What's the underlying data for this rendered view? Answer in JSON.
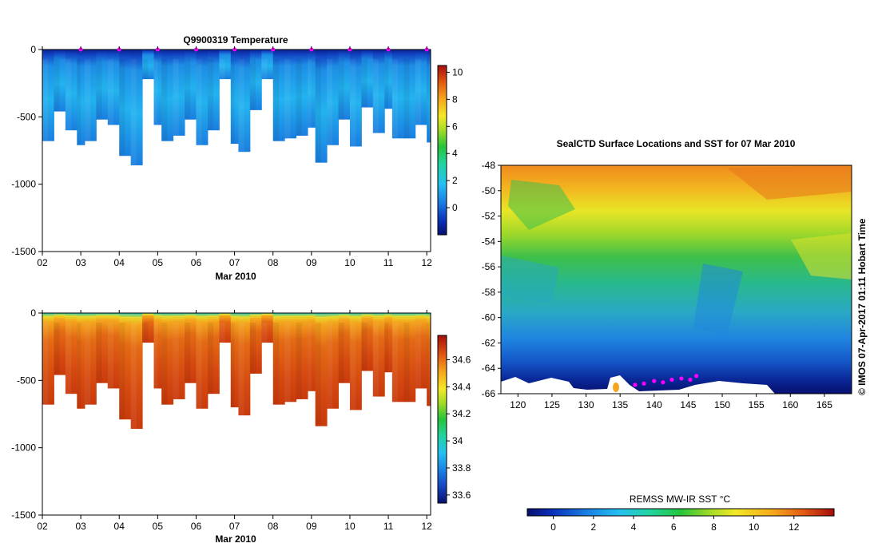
{
  "chart_data": [
    {
      "type": "heatmap",
      "title": "Q9900319  Temperature",
      "xlabel": "Mar 2010",
      "ylabel": "",
      "x_tick_labels": [
        "02",
        "03",
        "04",
        "05",
        "06",
        "07",
        "08",
        "09",
        "10",
        "11",
        "12"
      ],
      "x_range": [
        2,
        12.1
      ],
      "y_tick_labels": [
        "0",
        "-500",
        "-1000",
        "-1500"
      ],
      "y_range": [
        -1500,
        0
      ],
      "colorbar": {
        "ticks": [
          "0",
          "2",
          "4",
          "6",
          "8",
          "10"
        ],
        "range": [
          -2,
          10.5
        ]
      },
      "profile_days": [
        2.0,
        2.3,
        2.6,
        2.9,
        3.1,
        3.4,
        3.7,
        4.0,
        4.3,
        4.6,
        4.9,
        5.1,
        5.4,
        5.7,
        6.0,
        6.3,
        6.6,
        6.9,
        7.1,
        7.4,
        7.7,
        8.0,
        8.3,
        8.6,
        8.9,
        9.1,
        9.4,
        9.7,
        10.0,
        10.3,
        10.6,
        10.9,
        11.1,
        11.4,
        11.7,
        12.0
      ],
      "profile_max_depth": [
        680,
        460,
        600,
        710,
        680,
        520,
        560,
        790,
        860,
        220,
        560,
        680,
        640,
        520,
        710,
        600,
        220,
        700,
        760,
        450,
        220,
        680,
        660,
        640,
        580,
        840,
        710,
        520,
        720,
        430,
        620,
        440,
        660,
        660,
        560,
        690
      ],
      "surface_value": -1.2,
      "deep_value": 1.2,
      "markers_at": [
        3,
        4,
        5,
        6,
        7,
        8,
        9,
        10,
        11,
        12
      ]
    },
    {
      "type": "heatmap",
      "title": "",
      "xlabel": "Mar 2010",
      "ylabel": "",
      "x_tick_labels": [
        "02",
        "03",
        "04",
        "05",
        "06",
        "07",
        "08",
        "09",
        "10",
        "11",
        "12"
      ],
      "x_range": [
        2,
        12.1
      ],
      "y_tick_labels": [
        "0",
        "-500",
        "-1000",
        "-1500"
      ],
      "y_range": [
        -1500,
        0
      ],
      "colorbar": {
        "ticks": [
          "33.6",
          "33.8",
          "34",
          "34.2",
          "34.4",
          "34.6"
        ],
        "range": [
          33.54,
          34.78
        ]
      },
      "surface_value": 33.9,
      "deep_value": 34.7
    },
    {
      "type": "heatmap",
      "title": "SealCTD Surface Locations and SST for 07 Mar 2010",
      "xlabel": "",
      "ylabel": "",
      "x_tick_labels": [
        "120",
        "125",
        "130",
        "135",
        "140",
        "145",
        "150",
        "155",
        "160",
        "165"
      ],
      "x_range": [
        117.5,
        169
      ],
      "y_tick_labels": [
        "-48",
        "-50",
        "-52",
        "-54",
        "-56",
        "-58",
        "-60",
        "-62",
        "-64",
        "-66"
      ],
      "y_range": [
        -66,
        -48
      ],
      "seal_track": [
        {
          "lon": 137.2,
          "lat": -65.3
        },
        {
          "lon": 138.5,
          "lat": -65.2
        },
        {
          "lon": 140.0,
          "lat": -65.0
        },
        {
          "lon": 141.3,
          "lat": -65.1
        },
        {
          "lon": 142.6,
          "lat": -64.9
        },
        {
          "lon": 144.0,
          "lat": -64.8
        },
        {
          "lon": 145.3,
          "lat": -64.9
        },
        {
          "lon": 146.2,
          "lat": -64.6
        }
      ],
      "colorbar": {
        "label": "REMSS MW-IR SST °C",
        "ticks": [
          "0",
          "2",
          "4",
          "6",
          "8",
          "10",
          "12"
        ],
        "range": [
          -1.3,
          14
        ]
      }
    }
  ],
  "credit": "©  IMOS 07-Apr-2017 01:11 Hobart Time",
  "colors": {
    "marker": "#ff00ff",
    "land": "#ffffff"
  }
}
